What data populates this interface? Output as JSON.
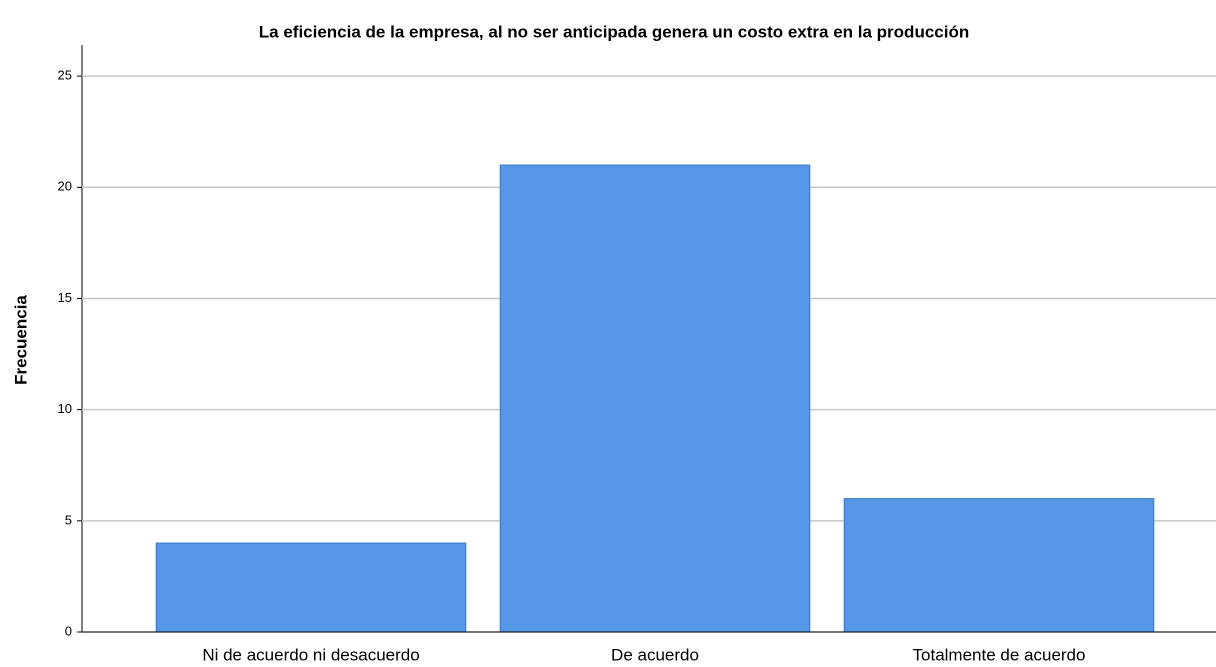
{
  "chart_data": {
    "type": "bar",
    "title": "La eficiencia de la empresa, al no ser anticipada genera un costo extra en la producción",
    "y_label": "Frecuencia",
    "categories": [
      "Ni de acuerdo ni desacuerdo",
      "De acuerdo",
      "Totalmente de acuerdo"
    ],
    "values": [
      4,
      21,
      6
    ],
    "color": "#5596e6",
    "ylim": [
      0,
      26.4
    ],
    "yticks": [
      0,
      5,
      10,
      15,
      20,
      25
    ],
    "grid": true
  }
}
